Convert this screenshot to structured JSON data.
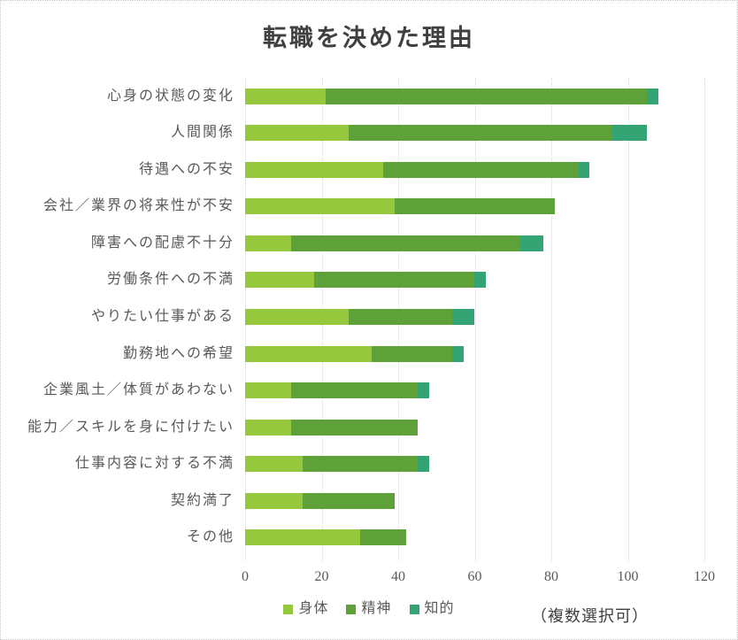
{
  "title": "転職を決めた理由",
  "note": "（複数選択可）",
  "colors": {
    "body_green": "#95C83C",
    "mind_green": "#5FA139",
    "intellect_teal": "#34A474",
    "gridline": "#D9D9D9",
    "axis_text": "#595959",
    "title_text": "#404040"
  },
  "chart_data": {
    "type": "bar",
    "orientation": "horizontal",
    "stacked": true,
    "title": "転職を決めた理由",
    "grid": true,
    "legend_position": "bottom",
    "xlim": [
      0,
      120
    ],
    "x_ticks": [
      "0",
      "20",
      "40",
      "60",
      "80",
      "100",
      "120"
    ],
    "categories": [
      "心身の状態の変化",
      "人間関係",
      "待遇への不安",
      "会社／業界の将来性が不安",
      "障害への配慮不十分",
      "労働条件への不満",
      "やりたい仕事がある",
      "勤務地への希望",
      "企業風土／体質があわない",
      "能力／スキルを身に付けたい",
      "仕事内容に対する不満",
      "契約満了",
      "その他"
    ],
    "series": [
      {
        "name": "身体",
        "color": "#95C83C",
        "values": [
          21,
          27,
          36,
          39,
          12,
          18,
          27,
          33,
          12,
          12,
          15,
          15,
          30
        ]
      },
      {
        "name": "精神",
        "color": "#5FA139",
        "values": [
          84,
          69,
          51,
          42,
          60,
          42,
          27,
          21,
          33,
          33,
          30,
          24,
          12
        ]
      },
      {
        "name": "知的",
        "color": "#34A474",
        "values": [
          3,
          9,
          3,
          0,
          6,
          3,
          6,
          3,
          3,
          0,
          3,
          0,
          0
        ]
      }
    ],
    "totals": [
      108,
      105,
      90,
      81,
      78,
      63,
      60,
      57,
      48,
      45,
      48,
      39,
      42
    ]
  }
}
